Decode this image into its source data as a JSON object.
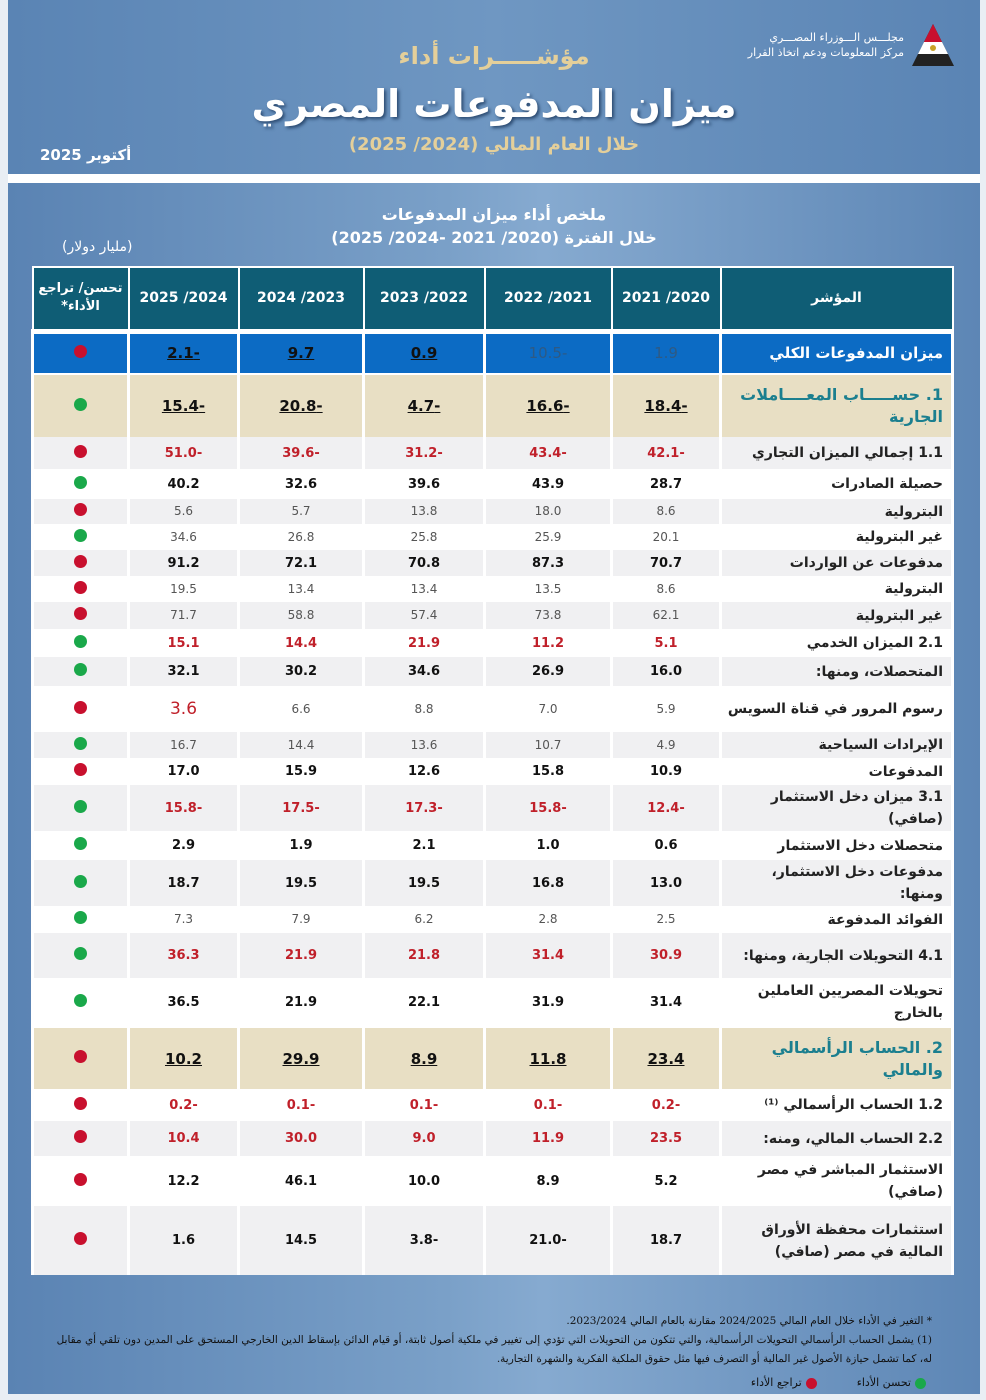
{
  "header": {
    "kicker": "مؤشـــــرات أداء",
    "title": "ميزان المدفوعات المصري",
    "subtitle": "خلال العام المالي (2024/ 2025)",
    "date": "أكتوبر 2025",
    "org_line1": "مجلـــس الـــوزراء المصـــري",
    "org_line2": "مركز المعلومات ودعم اتخاذ القرار"
  },
  "summary": {
    "title": "ملخص أداء ميزان المدفوعات",
    "period": "خلال الفترة (2020/ 2021 -2024/ 2025)",
    "unit": "(مليار دولار)"
  },
  "colors": {
    "improve": "#1aa84a",
    "decline": "#c8102e"
  },
  "table": {
    "headers": [
      "المؤشر",
      "2020/ 2021",
      "2021/ 2022",
      "2022/ 2023",
      "2023/ 2024",
      "2024/ 2025",
      "تحسن/ تراجع الأداء*"
    ],
    "rows": [
      {
        "kind": "total",
        "label": "ميزان المدفوعات الكلي",
        "values": [
          "1.9",
          "-10.5",
          "0.9",
          "9.7",
          "-2.1"
        ],
        "status": "decline"
      },
      {
        "kind": "section",
        "label": "1.  حســـــاب المعــــاملات الجارية",
        "values": [
          "-18.4",
          "-16.6",
          "-4.7",
          "-20.8",
          "-15.4"
        ],
        "status": "improve"
      },
      {
        "kind": "red",
        "label": "1.1 إجمالي الميزان التجاري",
        "values": [
          "-42.1",
          "-43.4",
          "-31.2",
          "-39.6",
          "-51.0"
        ],
        "status": "decline"
      },
      {
        "kind": "bold",
        "label": "حصيلة الصادرات",
        "values": [
          "28.7",
          "43.9",
          "39.6",
          "32.6",
          "40.2"
        ],
        "status": "improve"
      },
      {
        "kind": "light",
        "label": "البترولية",
        "values": [
          "8.6",
          "18.0",
          "13.8",
          "5.7",
          "5.6"
        ],
        "status": "decline"
      },
      {
        "kind": "light",
        "label": "غير البترولية",
        "values": [
          "20.1",
          "25.9",
          "25.8",
          "26.8",
          "34.6"
        ],
        "status": "improve"
      },
      {
        "kind": "bold",
        "label": "مدفوعات عن الواردات",
        "values": [
          "70.7",
          "87.3",
          "70.8",
          "72.1",
          "91.2"
        ],
        "status": "decline"
      },
      {
        "kind": "light",
        "label": "البترولية",
        "values": [
          "8.6",
          "13.5",
          "13.4",
          "13.4",
          "19.5"
        ],
        "status": "decline"
      },
      {
        "kind": "light",
        "label": "غير البترولية",
        "values": [
          "62.1",
          "73.8",
          "57.4",
          "58.8",
          "71.7"
        ],
        "status": "decline"
      },
      {
        "kind": "red",
        "label": "2.1 الميزان الخدمي",
        "values": [
          "5.1",
          "11.2",
          "21.9",
          "14.4",
          "15.1"
        ],
        "status": "improve"
      },
      {
        "kind": "bold",
        "label": "المتحصلات، ومنها:",
        "values": [
          "16.0",
          "26.9",
          "34.6",
          "30.2",
          "32.1"
        ],
        "status": "improve"
      },
      {
        "kind": "suez",
        "label": "رسوم المرور في قناة السويس",
        "values": [
          "5.9",
          "7.0",
          "8.8",
          "6.6",
          "3.6"
        ],
        "status": "decline"
      },
      {
        "kind": "light",
        "label": "الإيرادات السياحية",
        "values": [
          "4.9",
          "10.7",
          "13.6",
          "14.4",
          "16.7"
        ],
        "status": "improve"
      },
      {
        "kind": "bold",
        "label": "المدفوعات",
        "values": [
          "10.9",
          "15.8",
          "12.6",
          "15.9",
          "17.0"
        ],
        "status": "decline"
      },
      {
        "kind": "red",
        "label": "3.1 ميزان دخل الاستثمار (صافي)",
        "values": [
          "-12.4",
          "-15.8",
          "-17.3",
          "-17.5",
          "-15.8"
        ],
        "status": "improve"
      },
      {
        "kind": "bold",
        "label": "متحصلات دخل الاستثمار",
        "values": [
          "0.6",
          "1.0",
          "2.1",
          "1.9",
          "2.9"
        ],
        "status": "improve"
      },
      {
        "kind": "bold",
        "label": "مدفوعات دخل الاستثمار، ومنها:",
        "values": [
          "13.0",
          "16.8",
          "19.5",
          "19.5",
          "18.7"
        ],
        "status": "improve"
      },
      {
        "kind": "light",
        "label": "الفوائد المدفوعة",
        "values": [
          "2.5",
          "2.8",
          "6.2",
          "7.9",
          "7.3"
        ],
        "status": "improve"
      },
      {
        "kind": "red",
        "label": "4.1 التحويلات الجارية، ومنها:",
        "values": [
          "30.9",
          "31.4",
          "21.8",
          "21.9",
          "36.3"
        ],
        "status": "improve"
      },
      {
        "kind": "bold",
        "label": "تحويلات المصريين العاملين بالخارج",
        "values": [
          "31.4",
          "31.9",
          "22.1",
          "21.9",
          "36.5"
        ],
        "status": "improve"
      },
      {
        "kind": "section",
        "label": "2.  الحساب الرأسمالي والمالي",
        "values": [
          "23.4",
          "11.8",
          "8.9",
          "29.9",
          "10.2"
        ],
        "status": "decline"
      },
      {
        "kind": "red",
        "label": "1.2 الحساب الرأسمالي ⁽¹⁾",
        "values": [
          "-0.2",
          "-0.1",
          "-0.1",
          "-0.1",
          "-0.2"
        ],
        "status": "decline"
      },
      {
        "kind": "red",
        "label": "2.2 الحساب المالي، ومنه:",
        "values": [
          "23.5",
          "11.9",
          "9.0",
          "30.0",
          "10.4"
        ],
        "status": "decline"
      },
      {
        "kind": "bold",
        "label": "الاستثمار المباشر في مصر (صافي)",
        "values": [
          "5.2",
          "8.9",
          "10.0",
          "46.1",
          "12.2"
        ],
        "status": "decline"
      },
      {
        "kind": "bold",
        "label": "استثمارات محفظة الأوراق المالية في مصر (صافي)",
        "values": [
          "18.7",
          "-21.0",
          "-3.8",
          "14.5",
          "1.6"
        ],
        "status": "decline"
      }
    ]
  },
  "notes": {
    "star": "* التغير في الأداء خلال العام المالي 2024/2025 مقارنة بالعام المالي 2023/2024.",
    "one": "(1)   يشمل الحساب الرأسمالي التحويلات الرأسمالية، والتي تتكون من التحويلات التي تؤدي إلى تغيير في ملكية أصول ثابتة، أو قيام الدائن بإسقاط الدين الخارجي المستحق على المدين دون تلقي أي مقابل له، كما تشمل حيازة الأصول غير المالية أو التصرف فيها مثل حقوق الملكية الفكرية والشهرة التجارية.",
    "legend_improve": "تحسن الأداء",
    "legend_decline": "تراجع الأداء"
  }
}
